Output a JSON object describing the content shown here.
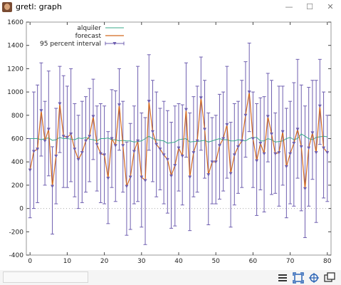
{
  "window": {
    "title": "gretl: graph",
    "minimize_symbol": "—",
    "maximize_symbol": "☐",
    "close_symbol": "✕"
  },
  "toolbar": {
    "icons": [
      "menu-icon",
      "zoom-fit-icon",
      "crosshair-icon",
      "copy-window-icon"
    ]
  },
  "colors": {
    "alquiler": "#3aaa8a",
    "forecast": "#d2691e",
    "interval": "#6f5fb0",
    "zero_line": "#a9a9a9"
  },
  "chart_data": {
    "type": "line",
    "x": [
      0,
      1,
      2,
      3,
      4,
      5,
      6,
      7,
      8,
      9,
      10,
      11,
      12,
      13,
      14,
      15,
      16,
      17,
      18,
      19,
      20,
      21,
      22,
      23,
      24,
      25,
      26,
      27,
      28,
      29,
      30,
      31,
      32,
      33,
      34,
      35,
      36,
      37,
      38,
      39,
      40,
      41,
      42,
      43,
      44,
      45,
      46,
      47,
      48,
      49,
      50,
      51,
      52,
      53,
      54,
      55,
      56,
      57,
      58,
      59,
      60,
      61,
      62,
      63,
      64,
      65,
      66,
      67,
      68,
      69,
      70,
      71,
      72,
      73,
      74,
      75,
      76,
      77,
      78,
      79,
      80
    ],
    "xlim": [
      -1,
      81
    ],
    "ylim": [
      -400,
      1600
    ],
    "xticks": [
      0,
      10,
      20,
      30,
      40,
      50,
      60,
      70,
      80
    ],
    "yticks": [
      -400,
      -200,
      0,
      200,
      400,
      600,
      800,
      1000,
      1200,
      1400,
      1600
    ],
    "zero_line": 0,
    "series": [
      {
        "name": "alquiler",
        "values": [
          600,
          600,
          600,
          590,
          600,
          605,
          585,
          590,
          610,
          600,
          600,
          595,
          590,
          605,
          600,
          610,
          595,
          590,
          580,
          600,
          600,
          605,
          590,
          590,
          580,
          585,
          580,
          580,
          570,
          575,
          580,
          600,
          620,
          600,
          590,
          585,
          580,
          560,
          565,
          570,
          590,
          595,
          600,
          570,
          575,
          575,
          580,
          585,
          570,
          580,
          590,
          600,
          590,
          590,
          580,
          580,
          590,
          585,
          580,
          600,
          610,
          610,
          580,
          580,
          600,
          590,
          570,
          575,
          580,
          600,
          610,
          590,
          600,
          640,
          620,
          600,
          590,
          610,
          615,
          620,
          615
        ]
      },
      {
        "name": "forecast",
        "values": [
          330,
          490,
          510,
          840,
          580,
          680,
          190,
          450,
          900,
          620,
          610,
          640,
          510,
          420,
          480,
          580,
          620,
          790,
          550,
          470,
          460,
          260,
          600,
          540,
          890,
          540,
          190,
          270,
          490,
          580,
          270,
          240,
          920,
          660,
          550,
          510,
          460,
          420,
          280,
          370,
          520,
          450,
          850,
          270,
          480,
          580,
          950,
          680,
          290,
          400,
          400,
          540,
          600,
          720,
          300,
          460,
          530,
          580,
          800,
          1000,
          600,
          410,
          560,
          470,
          790,
          640,
          470,
          480,
          660,
          360,
          470,
          560,
          680,
          530,
          170,
          520,
          650,
          480,
          880,
          520,
          480
        ],
        "upper": [
          600,
          1000,
          1060,
          1250,
          920,
          1180,
          530,
          860,
          1220,
          1140,
          1050,
          1200,
          900,
          800,
          920,
          960,
          1030,
          1110,
          880,
          900,
          880,
          660,
          1020,
          1010,
          1200,
          920,
          570,
          730,
          880,
          1220,
          820,
          780,
          1320,
          1100,
          1000,
          860,
          920,
          840,
          740,
          880,
          900,
          890,
          1250,
          820,
          960,
          1050,
          1300,
          1100,
          820,
          780,
          800,
          980,
          1000,
          1220,
          740,
          900,
          920,
          1100,
          1260,
          1420,
          1000,
          900,
          950,
          960,
          1160,
          1100,
          820,
          1050,
          1050,
          860,
          920,
          1080,
          1280,
          1060,
          880,
          1040,
          1100,
          1100,
          1280,
          1000,
          800
        ],
        "lower": [
          -80,
          0,
          50,
          450,
          200,
          280,
          -220,
          40,
          480,
          180,
          180,
          230,
          100,
          0,
          50,
          140,
          230,
          420,
          150,
          50,
          40,
          -130,
          180,
          60,
          500,
          140,
          -230,
          -180,
          40,
          60,
          -160,
          -310,
          500,
          230,
          100,
          160,
          40,
          -40,
          -170,
          -150,
          150,
          30,
          440,
          -190,
          100,
          140,
          500,
          260,
          -140,
          40,
          40,
          80,
          150,
          260,
          -160,
          30,
          130,
          180,
          440,
          660,
          180,
          -60,
          160,
          -30,
          400,
          120,
          130,
          20,
          200,
          -80,
          40,
          20,
          260,
          -20,
          -250,
          20,
          250,
          -120,
          550,
          90,
          60
        ]
      }
    ],
    "legend": [
      "alquiler",
      "forecast",
      "95 percent interval"
    ],
    "legend_position": "top-left",
    "grid": false
  }
}
